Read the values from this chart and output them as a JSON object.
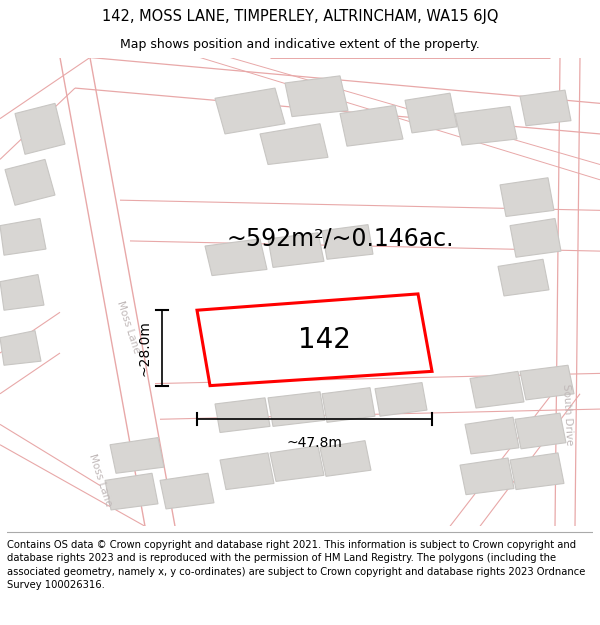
{
  "title_line1": "142, MOSS LANE, TIMPERLEY, ALTRINCHAM, WA15 6JQ",
  "title_line2": "Map shows position and indicative extent of the property.",
  "area_text": "~592m²/~0.146ac.",
  "label_142": "142",
  "dim_width": "~47.8m",
  "dim_height": "~28.0m",
  "road_label_moss1": "Moss Lane",
  "road_label_moss2": "Moss Lane",
  "road_label_south": "South Drive",
  "footer_text": "Contains OS data © Crown copyright and database right 2021. This information is subject to Crown copyright and database rights 2023 and is reproduced with the permission of HM Land Registry. The polygons (including the associated geometry, namely x, y co-ordinates) are subject to Crown copyright and database rights 2023 Ordnance Survey 100026316.",
  "bg_color": "#ffffff",
  "map_bg": "#f5f3f0",
  "building_fill": "#d8d6d3",
  "building_edge": "#c8c6c3",
  "road_line_color": "#e8a8a8",
  "highlight_color": "#ff0000",
  "dim_line_color": "#000000",
  "text_color": "#000000",
  "road_text_color": "#c0b8b8",
  "title_fontsize": 10.5,
  "subtitle_fontsize": 9,
  "area_fontsize": 17,
  "label_fontsize": 20,
  "dim_fontsize": 10,
  "footer_fontsize": 7.2
}
